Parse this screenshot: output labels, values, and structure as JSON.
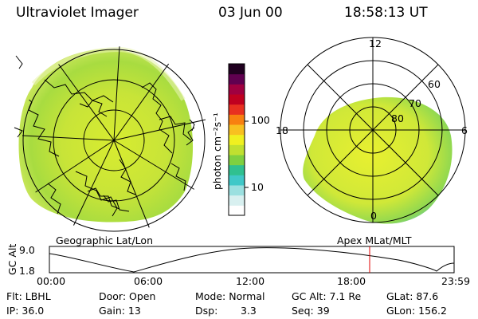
{
  "header": {
    "instrument": "Ultraviolet Imager",
    "date": "03 Jun 00",
    "time": "18:58:13 UT"
  },
  "left_map": {
    "caption": "Geographic Lat/Lon"
  },
  "right_map": {
    "caption": "Apex MLat/MLT",
    "mlt_labels": [
      "12",
      "18",
      "6",
      "0"
    ],
    "lat_labels": [
      "60",
      "70",
      "80"
    ]
  },
  "colorbar": {
    "unit_label": "photon cm⁻²s⁻¹",
    "tick_labels": [
      "100",
      "10"
    ],
    "colors_bottom_to_top": [
      "#ffffff",
      "#d8f0f0",
      "#9be0e0",
      "#40c8c8",
      "#30c090",
      "#7fd040",
      "#c0e030",
      "#f0f020",
      "#f8c020",
      "#f88010",
      "#e83020",
      "#c00020",
      "#a00040",
      "#600050",
      "#200020"
    ]
  },
  "timeline": {
    "axis_label": "GC Alt",
    "y_ticks": [
      "9.0",
      "1.8"
    ],
    "x_ticks": [
      "00:00",
      "06:00",
      "12:00",
      "18:00",
      "23:59"
    ]
  },
  "info": {
    "flt": "Flt: LBHL",
    "ip": "IP: 36.0",
    "door": "Door: Open",
    "gain": "Gain: 13",
    "mode": "Mode: Normal",
    "dsp_label": "Dsp:",
    "dsp_value": "3.3",
    "gc_alt": "GC Alt: 7.1 Re",
    "seq": "Seq: 39",
    "glat": "GLat: 87.6",
    "glon": "GLon: 156.2"
  }
}
